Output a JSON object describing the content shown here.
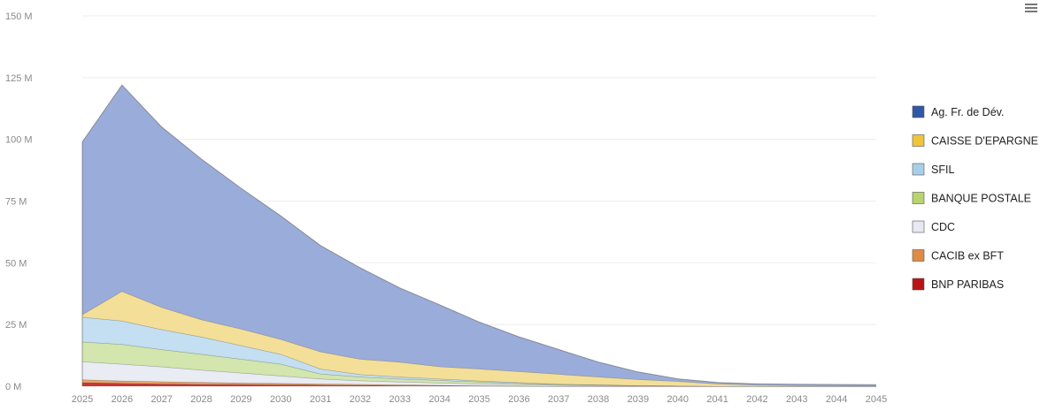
{
  "chart_data": {
    "type": "area",
    "stacked": true,
    "x": [
      "2025",
      "2026",
      "2027",
      "2028",
      "2029",
      "2030",
      "2031",
      "2032",
      "2033",
      "2034",
      "2035",
      "2036",
      "2037",
      "2038",
      "2039",
      "2040",
      "2041",
      "2042",
      "2043",
      "2044",
      "2045"
    ],
    "y_ticks": [
      "0 M",
      "25 M",
      "50 M",
      "75 M",
      "100 M",
      "125 M",
      "150 M"
    ],
    "ylim": [
      0,
      150
    ],
    "legend_position": "right",
    "series": [
      {
        "name": "BNP PARIBAS",
        "color": "#c21f1f",
        "values": [
          1.5,
          1.2,
          1.0,
          0.8,
          0.7,
          0.6,
          0.5,
          0.4,
          0.3,
          0.2,
          0.1,
          0.05,
          0,
          0,
          0,
          0,
          0,
          0,
          0,
          0,
          0
        ]
      },
      {
        "name": "CACIB ex BFT",
        "color": "#e79a55",
        "values": [
          1.2,
          1.0,
          0.9,
          0.8,
          0.7,
          0.6,
          0.5,
          0.4,
          0.3,
          0.2,
          0.1,
          0.05,
          0,
          0,
          0,
          0,
          0,
          0,
          0,
          0,
          0
        ]
      },
      {
        "name": "CDC",
        "color": "#e8eaf3",
        "values": [
          7.3,
          6.8,
          6.0,
          5.0,
          4.0,
          3.0,
          2.0,
          1.5,
          1.2,
          1.0,
          0.8,
          0.6,
          0.4,
          0.3,
          0.2,
          0.1,
          0,
          0,
          0,
          0,
          0
        ]
      },
      {
        "name": "BANQUE POSTALE",
        "color": "#cde3a4",
        "values": [
          8.0,
          8.0,
          7.0,
          6.4,
          5.6,
          4.8,
          2.0,
          1.5,
          1.2,
          1.0,
          0.8,
          0.5,
          0.3,
          0.2,
          0.1,
          0,
          0,
          0,
          0,
          0,
          0
        ]
      },
      {
        "name": "SFIL",
        "color": "#bcdcef",
        "values": [
          10.0,
          9.5,
          8.1,
          7.0,
          5.5,
          4.0,
          2.0,
          1.0,
          0.8,
          0.6,
          0.4,
          0.3,
          0.2,
          0.1,
          0,
          0,
          0,
          0,
          0,
          0,
          0
        ]
      },
      {
        "name": "CAISSE D'EPARGNE",
        "color": "#f3dc8e",
        "values": [
          1.0,
          12.0,
          9.0,
          7.0,
          6.7,
          6.0,
          7.0,
          6.2,
          6.0,
          5.0,
          4.8,
          4.5,
          4.0,
          3.2,
          2.5,
          1.9,
          1.0,
          0.5,
          0.3,
          0.2,
          0.1
        ]
      },
      {
        "name": "Ag. Fr. de Dév.",
        "color": "#8fa3d5",
        "values": [
          70.0,
          83.5,
          73.0,
          65.0,
          57.0,
          50.0,
          43.0,
          37.0,
          30.0,
          25.0,
          19.0,
          14.0,
          10.0,
          6.0,
          3.0,
          1.0,
          0.5,
          0.5,
          0.5,
          0.5,
          0.5
        ]
      }
    ],
    "legend": [
      {
        "name": "Ag. Fr. de Dév.",
        "color": "#2e57a8"
      },
      {
        "name": "CAISSE D'EPARGNE",
        "color": "#f0c43a"
      },
      {
        "name": "SFIL",
        "color": "#a9cfe8"
      },
      {
        "name": "BANQUE POSTALE",
        "color": "#b9d46a"
      },
      {
        "name": "CDC",
        "color": "#e6e8f2"
      },
      {
        "name": "CACIB ex BFT",
        "color": "#e08a44"
      },
      {
        "name": "BNP PARIBAS",
        "color": "#b81414"
      }
    ]
  }
}
